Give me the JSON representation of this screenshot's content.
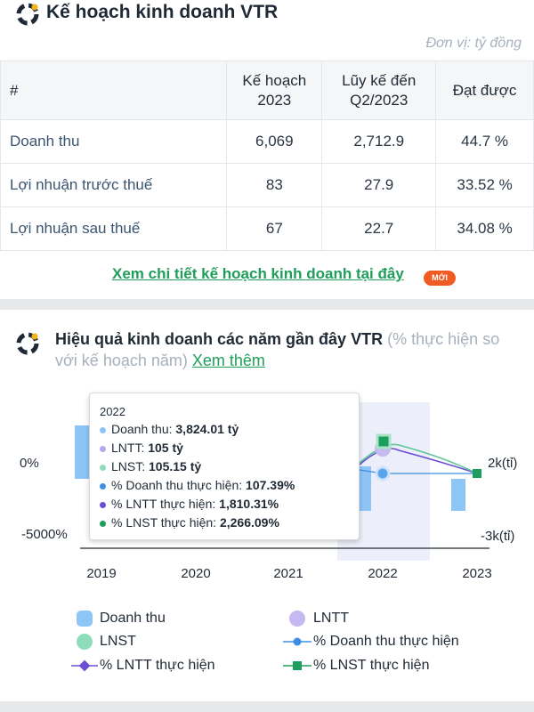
{
  "plan": {
    "title": "Kế hoạch kinh doanh VTR",
    "unit": "Đơn vị: tỷ đồng",
    "headers": [
      "#",
      "Kế hoạch 2023",
      "Lũy kế đến Q2/2023",
      "Đạt được"
    ],
    "rows": [
      {
        "label": "Doanh thu",
        "plan": "6,069",
        "cum": "2,712.9",
        "pct": "44.7 %"
      },
      {
        "label": "Lợi nhuận trước thuế",
        "plan": "83",
        "cum": "27.9",
        "pct": "33.52 %"
      },
      {
        "label": "Lợi nhuận sau thuế",
        "plan": "67",
        "cum": "22.7",
        "pct": "34.08 %"
      }
    ],
    "detail_link": "Xem chi tiết kế hoạch kinh doanh tại đây",
    "new_badge": "MỚI"
  },
  "perf": {
    "title": "Hiệu quả kinh doanh các năm gần đây VTR",
    "subtitle": "(% thực hiện so với kế hoạch năm)",
    "more_link": "Xem thêm"
  },
  "chart_data": {
    "type": "bar",
    "categories": [
      "2019",
      "2020",
      "2021",
      "2022",
      "2023"
    ],
    "left_axis_ticks": [
      "0%",
      "-5000%"
    ],
    "right_axis_ticks": [
      "2k(tỉ)",
      "-3k(tỉ)"
    ],
    "series": [
      {
        "name": "Doanh thu",
        "type": "bar",
        "values": [
          null,
          null,
          null,
          3824.01,
          null
        ]
      },
      {
        "name": "LNTT",
        "type": "bar",
        "values": [
          null,
          null,
          null,
          105,
          null
        ]
      },
      {
        "name": "LNST",
        "type": "bar",
        "values": [
          null,
          null,
          null,
          105.15,
          null
        ]
      },
      {
        "name": "% Doanh thu thực hiện",
        "type": "line",
        "values": [
          null,
          null,
          null,
          107.39,
          null
        ]
      },
      {
        "name": "% LNTT thực hiện",
        "type": "line",
        "values": [
          null,
          null,
          null,
          1810.31,
          null
        ]
      },
      {
        "name": "% LNST thực hiện",
        "type": "line",
        "values": [
          null,
          null,
          null,
          2266.09,
          null
        ]
      }
    ],
    "tooltip": {
      "year": "2022",
      "rows": [
        {
          "label": "Doanh thu: ",
          "value": "3,824.01 tỷ",
          "color": "#8ec5f7"
        },
        {
          "label": "LNTT: ",
          "value": "105 tỷ",
          "color": "#b6a8ea"
        },
        {
          "label": "LNST: ",
          "value": "105.15 tỷ",
          "color": "#8fdcbc"
        },
        {
          "label": "% Doanh thu thực hiện: ",
          "value": "107.39%",
          "color": "#3d8fe3"
        },
        {
          "label": "% LNTT thực hiện: ",
          "value": "1,810.31%",
          "color": "#6a4fd4"
        },
        {
          "label": "% LNST thực hiện: ",
          "value": "2,266.09%",
          "color": "#1e9e5c"
        }
      ]
    },
    "legend": [
      {
        "label": "Doanh thu",
        "symbol": "bar",
        "color": "#8ec5f7"
      },
      {
        "label": "LNTT",
        "symbol": "circle",
        "color": "#b6a8ea"
      },
      {
        "label": "LNST",
        "symbol": "circle",
        "color": "#8fdcbc"
      },
      {
        "label": "% Doanh thu thực hiện",
        "symbol": "line-circle",
        "color": "#3d8fe3"
      },
      {
        "label": "% LNTT thực hiện",
        "symbol": "line-diamond",
        "color": "#6a4fd4"
      },
      {
        "label": "% LNST thực hiện",
        "symbol": "line-square",
        "color": "#1e9e5c"
      }
    ]
  }
}
